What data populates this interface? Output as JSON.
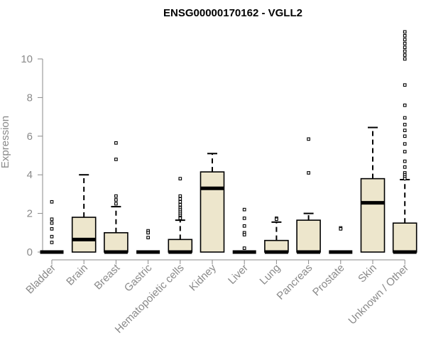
{
  "chart_data": {
    "type": "boxplot",
    "title": "ENSG00000170162 - VGLL2",
    "ylabel": "Expression",
    "xlabel": "",
    "ylim": [
      0,
      11.5
    ],
    "yticks": [
      0,
      2,
      4,
      6,
      8,
      10
    ],
    "box_fill": "#ede6cc",
    "categories": [
      "Bladder",
      "Brain",
      "Breast",
      "Gastric",
      "Hematopoietic cells",
      "Kidney",
      "Liver",
      "Lung",
      "Pancreas",
      "Prostate",
      "Skin",
      "Unknown / Other"
    ],
    "boxes": [
      {
        "category": "Bladder",
        "q1": 0,
        "median": 0,
        "q3": 0,
        "whisker_low": 0,
        "whisker_high": 0,
        "outliers": [
          2.6,
          1.7,
          1.5,
          1.2,
          0.8,
          0.5
        ]
      },
      {
        "category": "Brain",
        "q1": 0,
        "median": 0.65,
        "q3": 1.8,
        "whisker_low": 0,
        "whisker_high": 4.0,
        "outliers": []
      },
      {
        "category": "Breast",
        "q1": 0,
        "median": 0,
        "q3": 1.0,
        "whisker_low": 0,
        "whisker_high": 2.35,
        "outliers": [
          5.65,
          4.8,
          2.9,
          2.7,
          2.5
        ]
      },
      {
        "category": "Gastric",
        "q1": 0,
        "median": 0,
        "q3": 0,
        "whisker_low": 0,
        "whisker_high": 0,
        "outliers": [
          1.1,
          1.0,
          0.75
        ]
      },
      {
        "category": "Hematopoietic cells",
        "q1": 0,
        "median": 0,
        "q3": 0.65,
        "whisker_low": 0,
        "whisker_high": 1.65,
        "outliers": [
          3.8,
          2.9,
          2.75,
          2.6,
          2.45,
          2.3,
          2.2,
          2.1,
          2.0,
          1.9,
          1.8,
          1.75
        ]
      },
      {
        "category": "Kidney",
        "q1": 0,
        "median": 3.3,
        "q3": 4.15,
        "whisker_low": 0,
        "whisker_high": 5.1,
        "outliers": []
      },
      {
        "category": "Liver",
        "q1": 0,
        "median": 0,
        "q3": 0,
        "whisker_low": 0,
        "whisker_high": 0,
        "outliers": [
          2.2,
          1.75,
          1.35,
          1.0,
          0.9,
          0.2
        ]
      },
      {
        "category": "Lung",
        "q1": 0,
        "median": 0,
        "q3": 0.6,
        "whisker_low": 0,
        "whisker_high": 1.55,
        "outliers": [
          1.75,
          1.7
        ]
      },
      {
        "category": "Pancreas",
        "q1": 0,
        "median": 0,
        "q3": 1.65,
        "whisker_low": 0,
        "whisker_high": 2.0,
        "outliers": [
          5.85,
          4.1
        ]
      },
      {
        "category": "Prostate",
        "q1": 0,
        "median": 0,
        "q3": 0,
        "whisker_low": 0,
        "whisker_high": 0,
        "outliers": [
          1.25,
          1.2
        ]
      },
      {
        "category": "Skin",
        "q1": 0,
        "median": 2.55,
        "q3": 3.8,
        "whisker_low": 0,
        "whisker_high": 6.45,
        "outliers": []
      },
      {
        "category": "Unknown / Other",
        "q1": 0,
        "median": 0,
        "q3": 1.5,
        "whisker_low": 0,
        "whisker_high": 3.75,
        "outliers": [
          11.4,
          11.2,
          11.0,
          10.8,
          10.6,
          10.4,
          10.2,
          10.0,
          8.65,
          7.6,
          6.95,
          6.6,
          6.3,
          6.0,
          5.6,
          5.2,
          4.7,
          4.4,
          4.1,
          4.0,
          3.9,
          3.8
        ]
      }
    ]
  }
}
